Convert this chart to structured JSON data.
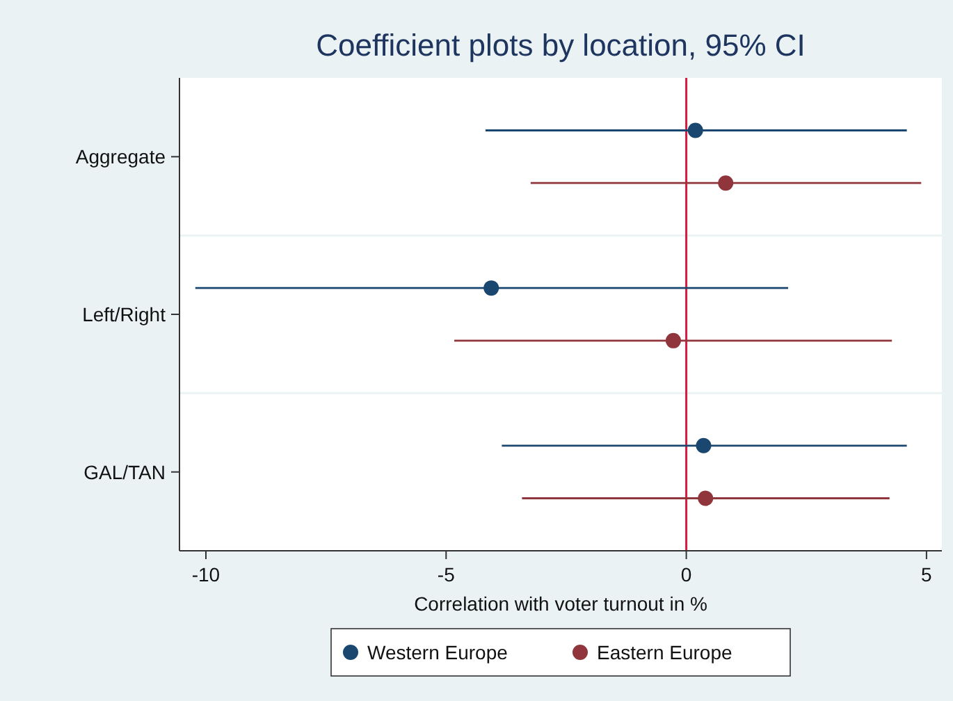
{
  "chart_data": {
    "type": "scatter",
    "orientation": "horizontal",
    "title": "Coefficient plots by location, 95% CI",
    "xlabel": "Correlation with voter turnout in %",
    "categories": [
      "Aggregate",
      "Left/Right",
      "GAL/TAN"
    ],
    "series": [
      {
        "name": "Western Europe",
        "color": "#1a476f",
        "values": [
          0.19,
          -4.06,
          0.36
        ],
        "errors": [
          [
            -4.18,
            4.59
          ],
          [
            -10.22,
            2.12
          ],
          [
            -3.84,
            4.59
          ]
        ]
      },
      {
        "name": "Eastern Europe",
        "color": "#90353b",
        "values": [
          0.82,
          -0.27,
          0.4
        ],
        "errors": [
          [
            -3.24,
            4.89
          ],
          [
            -4.83,
            4.28
          ],
          [
            -3.42,
            4.23
          ]
        ]
      }
    ],
    "xlim": [
      -10.55,
      5.32
    ],
    "xticks": [
      -10,
      -5,
      0,
      5
    ],
    "ref_lines": [
      {
        "axis": "x",
        "value": 0,
        "color": "#d7193f"
      }
    ],
    "grid": "y",
    "legend": "bottom",
    "marker": "circle"
  }
}
